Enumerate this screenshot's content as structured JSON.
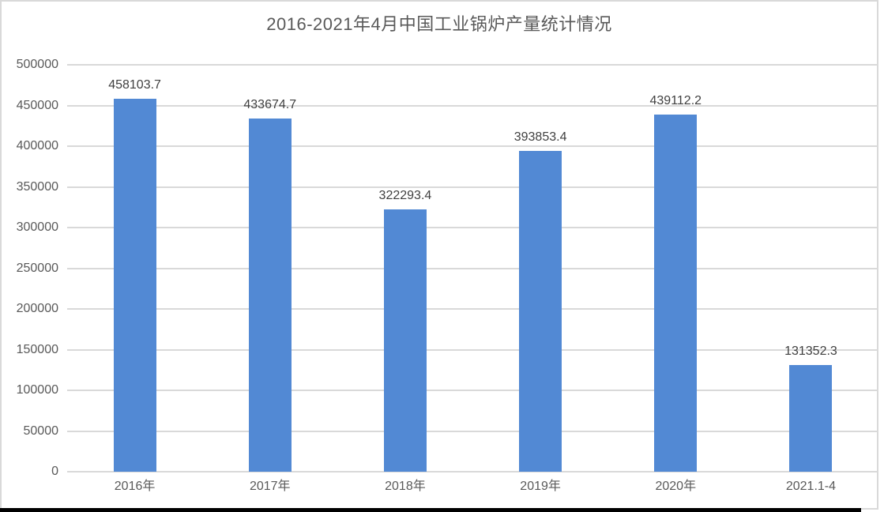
{
  "title": "2016-2021年4月中国工业锅炉产量统计情况",
  "colors": {
    "bar": "#5289d4",
    "gridline": "#d9d9d9",
    "frame_border": "#d9d9d9",
    "title_text": "#595959",
    "axis_text": "#595959",
    "data_label_text": "#3f3f3f",
    "bottom_strip": "#000000"
  },
  "chart_data": {
    "type": "bar",
    "title": "2016-2021年4月中国工业锅炉产量统计情况",
    "categories": [
      "2016年",
      "2017年",
      "2018年",
      "2019年",
      "2020年",
      "2021.1-4"
    ],
    "values": [
      458103.7,
      433674.7,
      322293.4,
      393853.4,
      439112.2,
      131352.3
    ],
    "data_labels": [
      "458103.7",
      "433674.7",
      "322293.4",
      "393853.4",
      "439112.2",
      "131352.3"
    ],
    "xlabel": "",
    "ylabel": "",
    "ylim": [
      0,
      500000
    ],
    "ytick_step": 50000,
    "ytick_labels": [
      "0",
      "50000",
      "100000",
      "150000",
      "200000",
      "250000",
      "300000",
      "350000",
      "400000",
      "450000",
      "500000"
    ],
    "grid": "horizontal-only",
    "legend_position": "none"
  }
}
